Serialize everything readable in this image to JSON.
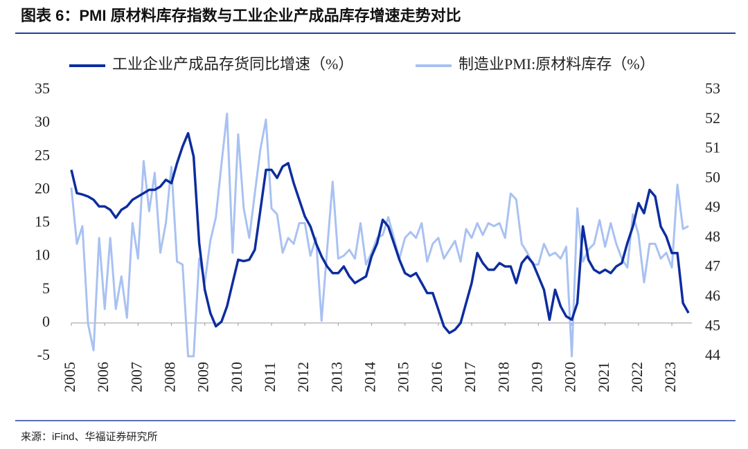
{
  "chart_data": {
    "type": "line",
    "title": "图表 6：PMI 原材料库存指数与工业企业产成品库存增速走势对比",
    "source": "来源：iFind、华福证券研究所",
    "x": [
      2005,
      2005.167,
      2005.333,
      2005.5,
      2005.667,
      2005.833,
      2006,
      2006.167,
      2006.333,
      2006.5,
      2006.667,
      2006.833,
      2007,
      2007.167,
      2007.333,
      2007.5,
      2007.667,
      2007.833,
      2008,
      2008.167,
      2008.333,
      2008.5,
      2008.667,
      2008.833,
      2009,
      2009.167,
      2009.333,
      2009.5,
      2009.667,
      2009.833,
      2010,
      2010.167,
      2010.333,
      2010.5,
      2010.667,
      2010.833,
      2011,
      2011.167,
      2011.333,
      2011.5,
      2011.667,
      2011.833,
      2012,
      2012.167,
      2012.333,
      2012.5,
      2012.667,
      2012.833,
      2013,
      2013.167,
      2013.333,
      2013.5,
      2013.667,
      2013.833,
      2014,
      2014.167,
      2014.333,
      2014.5,
      2014.667,
      2014.833,
      2015,
      2015.167,
      2015.333,
      2015.5,
      2015.667,
      2015.833,
      2016,
      2016.167,
      2016.333,
      2016.5,
      2016.667,
      2016.833,
      2017,
      2017.167,
      2017.333,
      2017.5,
      2017.667,
      2017.833,
      2018,
      2018.167,
      2018.333,
      2018.5,
      2018.667,
      2018.833,
      2019,
      2019.167,
      2019.333,
      2019.5,
      2019.667,
      2019.833,
      2020,
      2020.167,
      2020.333,
      2020.5,
      2020.667,
      2020.833,
      2021,
      2021.167,
      2021.333,
      2021.5,
      2021.667,
      2021.833,
      2022,
      2022.167,
      2022.333,
      2022.5,
      2022.667,
      2022.833,
      2023,
      2023.167,
      2023.333,
      2023.5
    ],
    "xlim": [
      2005,
      2023.6
    ],
    "xticks": [
      2005,
      2006,
      2007,
      2008,
      2009,
      2010,
      2011,
      2012,
      2013,
      2014,
      2015,
      2016,
      2017,
      2018,
      2019,
      2020,
      2021,
      2022,
      2023
    ],
    "ylim": [
      -5,
      35
    ],
    "yticks": [
      -5,
      0,
      5,
      10,
      15,
      20,
      25,
      30,
      35
    ],
    "y2lim": [
      44,
      53
    ],
    "y2ticks": [
      44,
      45,
      46,
      47,
      48,
      49,
      50,
      51,
      52,
      53
    ],
    "series": [
      {
        "name": "工业企业产成品存货同比增速（%）",
        "color": "#0c2d9e",
        "values": [
          23,
          19.5,
          19.3,
          19,
          18.5,
          17.5,
          17.5,
          17,
          15.8,
          17,
          17.5,
          18.5,
          19,
          19.5,
          20,
          20,
          20.5,
          21.5,
          21,
          24,
          26.5,
          28.5,
          25,
          12,
          5,
          1.5,
          -0.5,
          0.2,
          2.5,
          6,
          9.5,
          9.3,
          9.5,
          11,
          17,
          23,
          23,
          21.8,
          23.5,
          24,
          21,
          18.5,
          16,
          14.5,
          12,
          10,
          8.5,
          7.5,
          7.5,
          8.5,
          7,
          6,
          6.5,
          7,
          10,
          12,
          15.5,
          14.5,
          12,
          9.5,
          7.5,
          7,
          7.5,
          6,
          4.5,
          4.5,
          2,
          -0.5,
          -1.5,
          -1,
          0,
          3,
          6,
          10.5,
          9,
          8,
          8,
          9,
          8.5,
          8.5,
          6,
          9,
          10,
          9,
          7,
          5,
          0.5,
          5,
          2.5,
          1,
          0.5,
          3,
          14.5,
          9.5,
          8,
          7.5,
          8,
          7.5,
          8.5,
          9,
          12,
          14.5,
          18,
          16.5,
          20,
          19,
          14.5,
          13,
          10.5,
          10.5,
          3,
          1.5
        ]
      },
      {
        "name": "制造业PMI:原材料库存（%）",
        "color": "#a9c1f2",
        "axis": "y2",
        "values": [
          49.7,
          47.8,
          48.4,
          45.1,
          44.2,
          48.0,
          45.6,
          48.0,
          45.6,
          46.7,
          45.3,
          48.5,
          47.3,
          50.6,
          48.9,
          50.2,
          47.5,
          48.5,
          50.4,
          47.2,
          47.1,
          44.0,
          44.0,
          47.3,
          46.5,
          47.9,
          48.7,
          50.5,
          52.2,
          47.5,
          51.5,
          49.0,
          48.0,
          49.5,
          51.0,
          52.0,
          49.0,
          48.8,
          47.5,
          48.0,
          47.8,
          48.5,
          48.5,
          47.4,
          48.0,
          45.2,
          47.6,
          49.9,
          47.3,
          47.4,
          47.6,
          47.3,
          48.5,
          47.1,
          47.5,
          48.0,
          48.1,
          48.7,
          48.0,
          47.3,
          48.0,
          48.2,
          48.0,
          48.5,
          47.2,
          47.8,
          48.0,
          47.3,
          47.6,
          47.9,
          47.2,
          48.3,
          48.0,
          48.5,
          48.1,
          48.5,
          48.4,
          48.5,
          48.0,
          49.5,
          49.3,
          47.8,
          47.5,
          47.1,
          47.1,
          47.8,
          47.4,
          47.5,
          47.3,
          47.7,
          44.0,
          49.0,
          47.2,
          47.6,
          47.8,
          48.6,
          47.7,
          48.5,
          47.8,
          47.3,
          47.0,
          48.8,
          48.1,
          46.5,
          47.8,
          47.8,
          47.3,
          47.5,
          47.0,
          49.8,
          48.3,
          48.4
        ]
      }
    ]
  }
}
